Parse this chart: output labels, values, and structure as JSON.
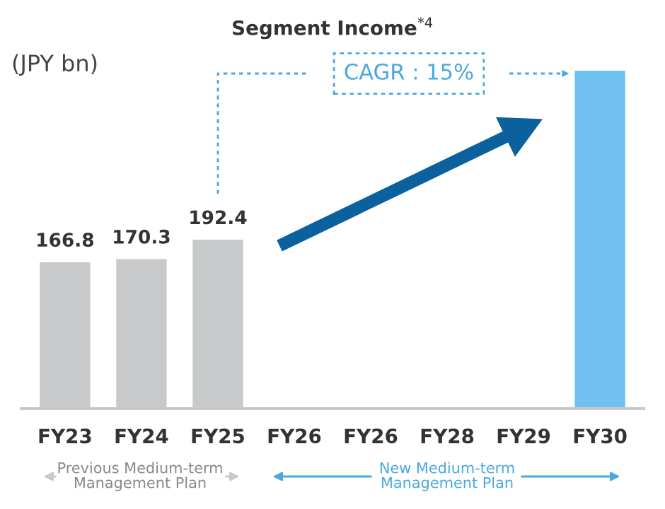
{
  "chart_data": {
    "type": "bar",
    "title": "Segment Income$^{*4}$",
    "categories": [
      "FY23",
      "FY24",
      "FY25",
      "FY26",
      "FY26",
      "FY28",
      "FY29",
      "FY30"
    ],
    "values": [
      166.8,
      170.3,
      192.4,
      null,
      null,
      null,
      null,
      385
    ],
    "value_labels": [
      "166.8",
      "170.3",
      "192.4",
      null,
      null,
      null,
      null,
      null
    ],
    "colors": [
      "#c8c9cb",
      "#c8c9cb",
      "#c8c9cb",
      "#c8c9cb",
      "#6fc0ef",
      "#6fc0ef",
      "#6fc0ef",
      "#6fc0ef"
    ],
    "annotations": [
      "(JPY bn)",
      "CAGR : 15%",
      "Previous Medium-term\nManagement Plan",
      "New Medium-term\nManagement Plan"
    ],
    "grid": false
  }
}
